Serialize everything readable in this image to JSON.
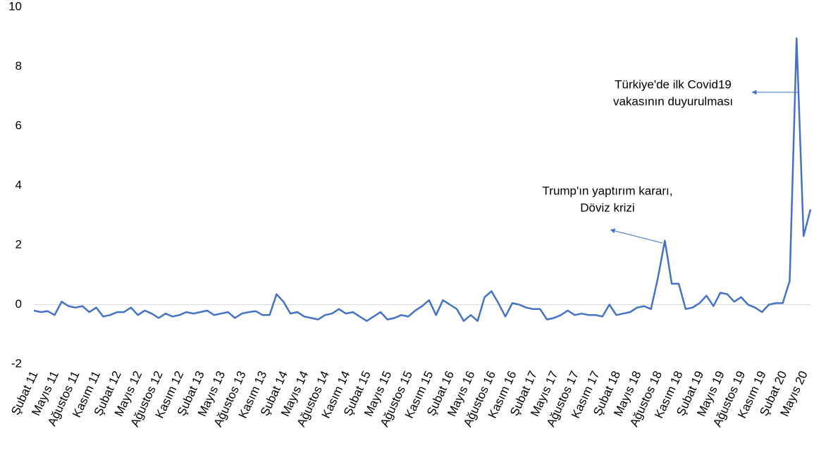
{
  "chart_data": {
    "type": "line",
    "categories": [
      "Şubat 11",
      null,
      null,
      "Mayıs 11",
      null,
      null,
      "Ağustos 11",
      null,
      null,
      "Kasım 11",
      null,
      null,
      "Şubat 12",
      null,
      null,
      "Mayıs 12",
      null,
      null,
      "Ağustos 12",
      null,
      null,
      "Kasım 12",
      null,
      null,
      "Şubat 13",
      null,
      null,
      "Mayıs 13",
      null,
      null,
      "Ağustos 13",
      null,
      null,
      "Kasım 13",
      null,
      null,
      "Şubat 14",
      null,
      null,
      "Mayıs 14",
      null,
      null,
      "Ağustos 14",
      null,
      null,
      "Kasım 14",
      null,
      null,
      "Şubat 15",
      null,
      null,
      "Mayıs 15",
      null,
      null,
      "Ağustos 15",
      null,
      null,
      "Kasım 15",
      null,
      null,
      "Şubat 16",
      null,
      null,
      "Mayıs 16",
      null,
      null,
      "Ağustos 16",
      null,
      null,
      "Kasım 16",
      null,
      null,
      "Şubat 17",
      null,
      null,
      "Mayıs 17",
      null,
      null,
      "Ağustos 17",
      null,
      null,
      "Kasım 17",
      null,
      null,
      "Şubat 18",
      null,
      null,
      "Mayıs 18",
      null,
      null,
      "Ağustos 18",
      null,
      null,
      "Kasım 18",
      null,
      null,
      "Şubat 19",
      null,
      null,
      "Mayıs 19",
      null,
      null,
      "Ağustos 19",
      null,
      null,
      "Kasım 19",
      null,
      null,
      "Şubat 20",
      null,
      null,
      "Mayıs 20",
      null
    ],
    "values": [
      -0.2,
      -0.25,
      -0.22,
      -0.35,
      0.1,
      -0.05,
      -0.1,
      -0.05,
      -0.25,
      -0.1,
      -0.4,
      -0.35,
      -0.25,
      -0.25,
      -0.1,
      -0.35,
      -0.2,
      -0.3,
      -0.45,
      -0.3,
      -0.4,
      -0.35,
      -0.25,
      -0.3,
      -0.25,
      -0.2,
      -0.35,
      -0.3,
      -0.25,
      -0.45,
      -0.3,
      -0.25,
      -0.22,
      -0.35,
      -0.35,
      0.35,
      0.1,
      -0.3,
      -0.25,
      -0.4,
      -0.45,
      -0.5,
      -0.35,
      -0.3,
      -0.15,
      -0.3,
      -0.25,
      -0.4,
      -0.55,
      -0.4,
      -0.25,
      -0.5,
      -0.45,
      -0.35,
      -0.4,
      -0.2,
      -0.05,
      0.15,
      -0.35,
      0.15,
      0.0,
      -0.15,
      -0.55,
      -0.35,
      -0.55,
      0.25,
      0.45,
      0.05,
      -0.4,
      0.05,
      0.0,
      -0.1,
      -0.15,
      -0.15,
      -0.5,
      -0.45,
      -0.35,
      -0.2,
      -0.35,
      -0.3,
      -0.35,
      -0.35,
      -0.4,
      0.0,
      -0.35,
      -0.3,
      -0.25,
      -0.1,
      -0.05,
      -0.15,
      0.9,
      2.15,
      0.7,
      0.7,
      -0.15,
      -0.1,
      0.05,
      0.3,
      -0.05,
      0.4,
      0.35,
      0.1,
      0.25,
      0.0,
      -0.1,
      -0.25,
      0.0,
      0.05,
      0.05,
      0.8,
      8.95,
      2.3,
      3.2
    ],
    "color": "#4472c4",
    "ylim": [
      -2,
      10
    ],
    "yticks": [
      -2,
      0,
      2,
      4,
      6,
      8,
      10
    ],
    "annotations": [
      {
        "text": [
          "Türkiye'de ilk Covid19",
          "vakasının duyurulması"
        ]
      },
      {
        "text": [
          "Trump'ın yaptırım kararı,",
          "Döviz krizi"
        ]
      }
    ]
  }
}
